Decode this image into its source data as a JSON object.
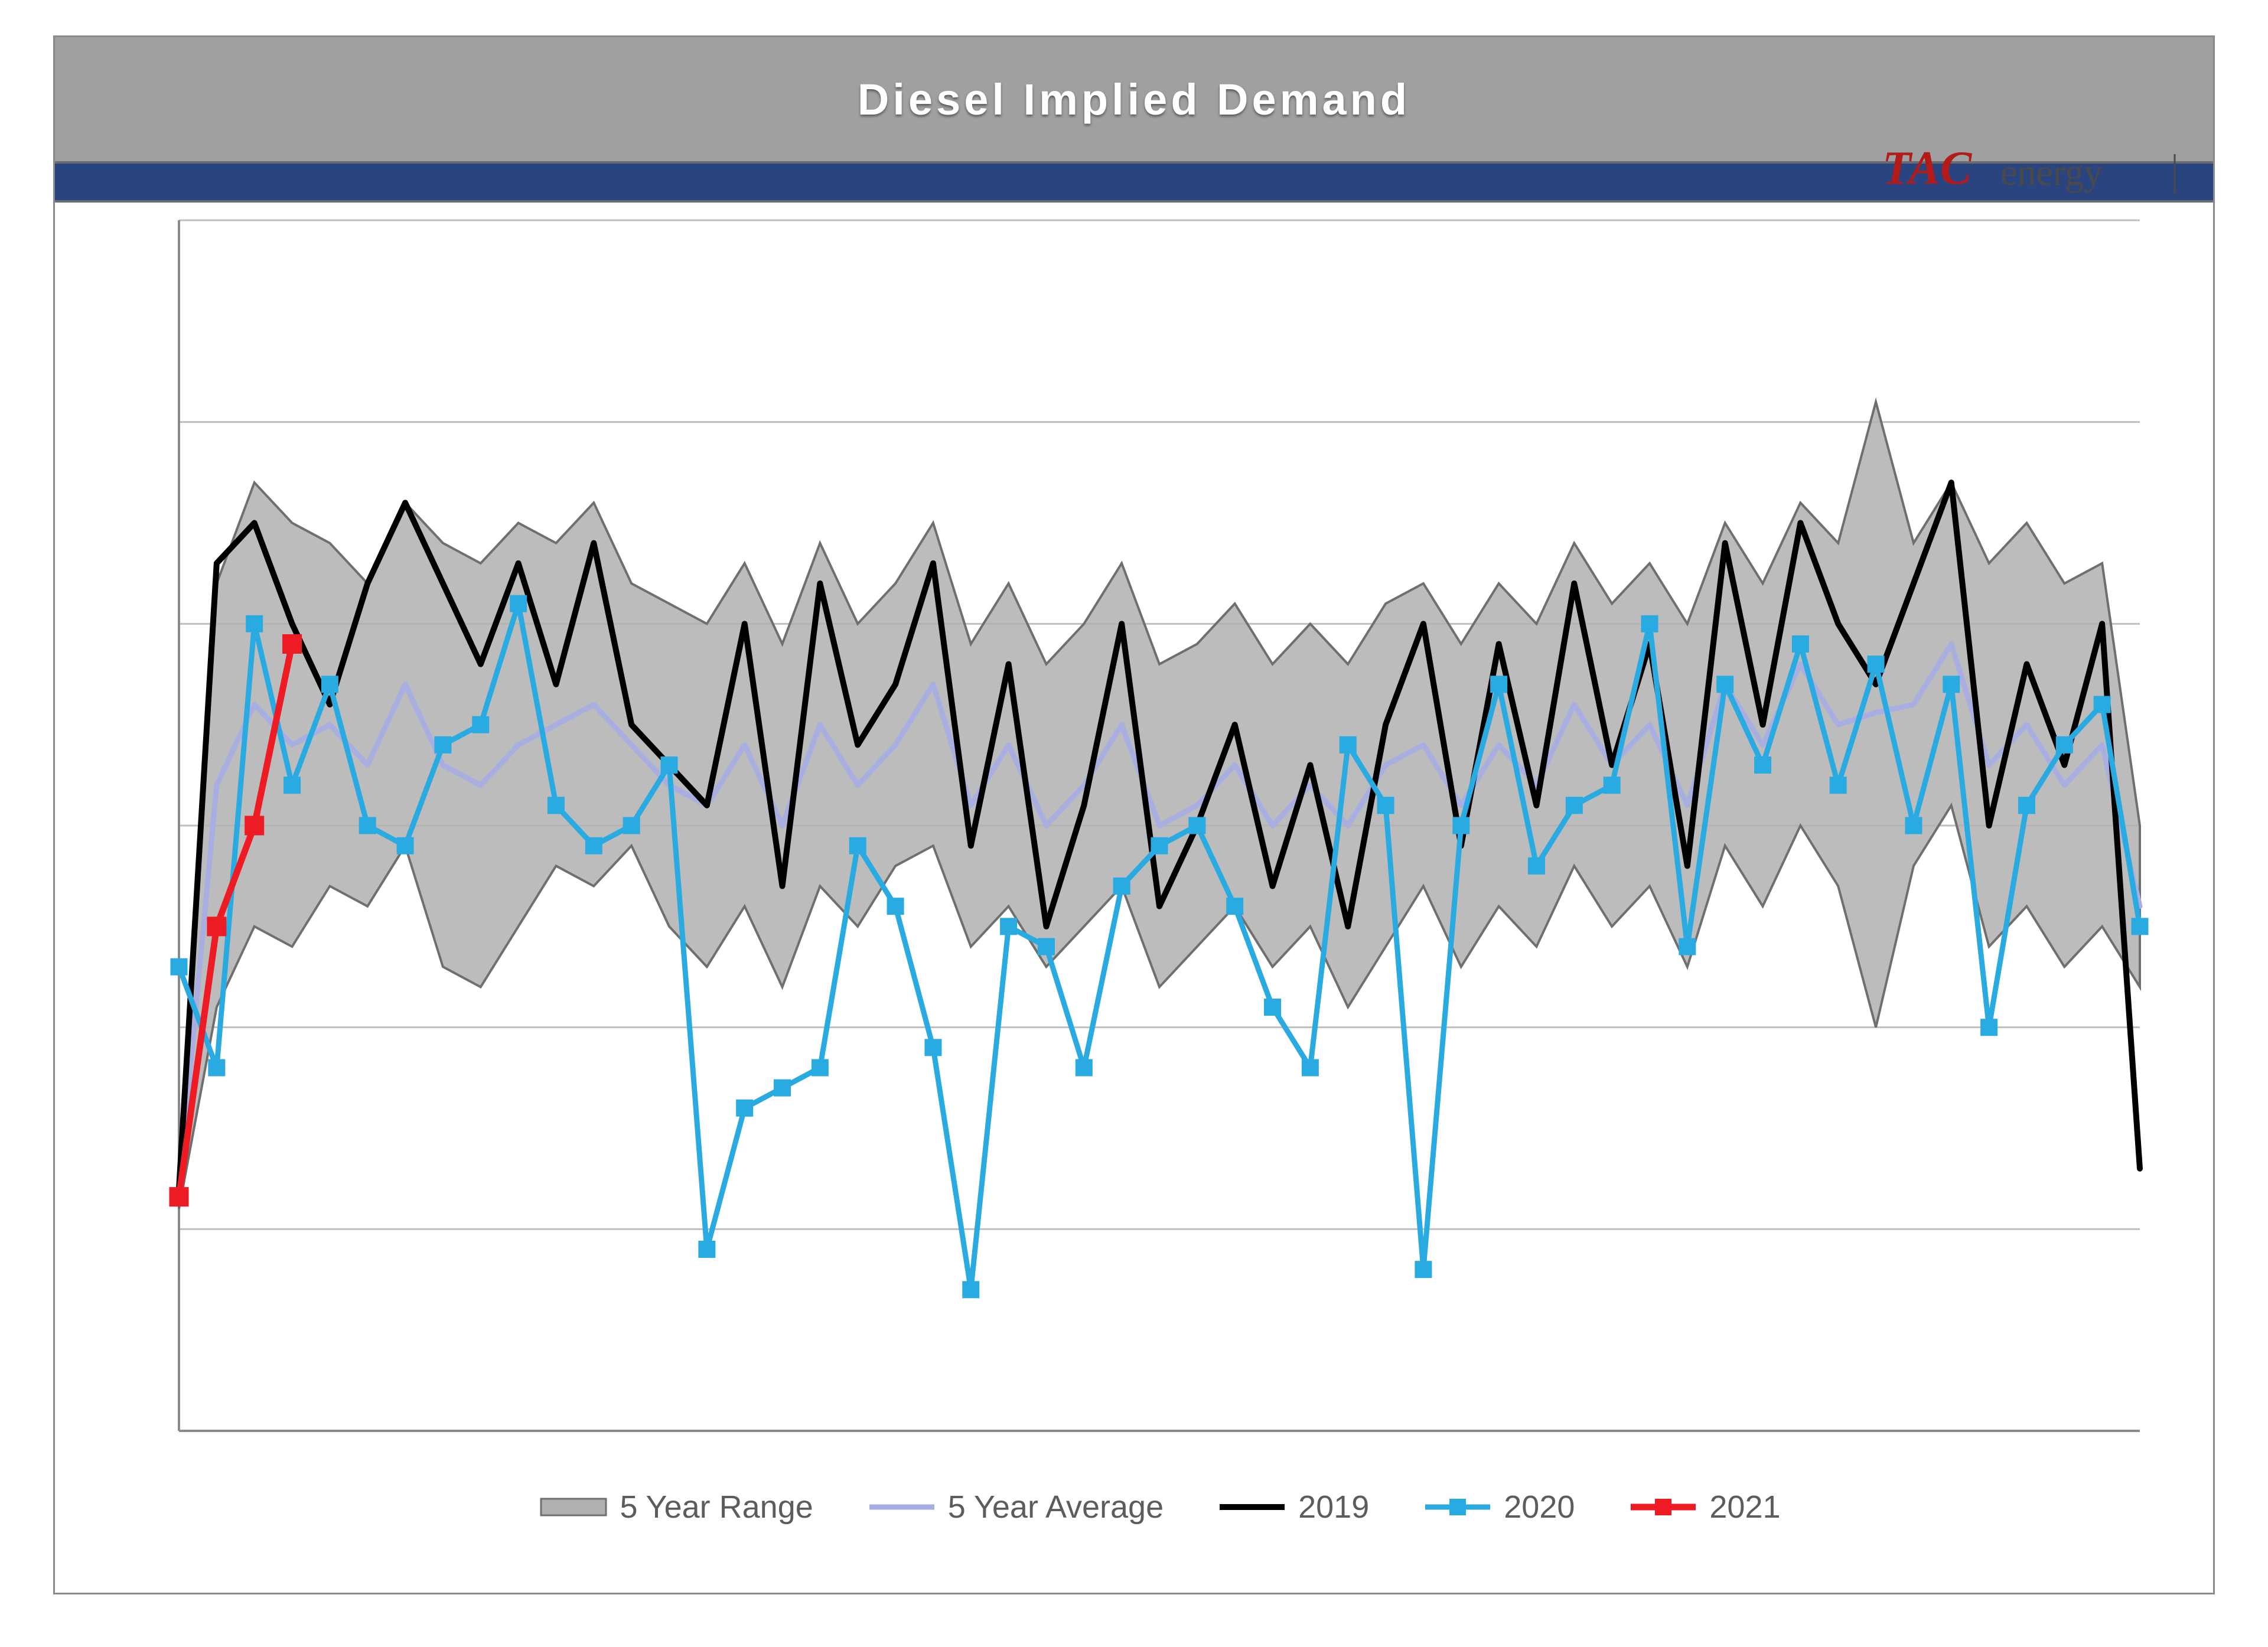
{
  "chart": {
    "type": "line-with-band",
    "title": "Diesel Implied Demand",
    "title_fontsize": 74,
    "title_color": "#ffffff",
    "title_bar_bg": "#9ea0a2",
    "accent_band_color": "#29447e",
    "outer_border_color": "#8a8a8a",
    "background_color": "#ffffff",
    "grid_color": "#bfbfbf",
    "axis_color": "#8a8a8a",
    "label_fontsize": 54,
    "label_color": "#5c5c5c",
    "x_count": 53,
    "ylim": [
      2400,
      5400
    ],
    "ytick_step": 500,
    "band": {
      "fill": "#b0b0b0",
      "stroke": "#6f6f6f",
      "upper": [
        3050,
        4500,
        4750,
        4650,
        4600,
        4500,
        4700,
        4600,
        4550,
        4650,
        4600,
        4700,
        4500,
        4450,
        4400,
        4550,
        4350,
        4600,
        4400,
        4500,
        4650,
        4350,
        4500,
        4300,
        4400,
        4550,
        4300,
        4350,
        4450,
        4300,
        4400,
        4300,
        4450,
        4500,
        4350,
        4500,
        4400,
        4600,
        4450,
        4550,
        4400,
        4650,
        4500,
        4700,
        4600,
        4950,
        4600,
        4750,
        4550,
        4650,
        4500,
        4550,
        3900
      ],
      "lower": [
        2950,
        3450,
        3650,
        3600,
        3750,
        3700,
        3850,
        3550,
        3500,
        3650,
        3800,
        3750,
        3850,
        3650,
        3550,
        3700,
        3500,
        3750,
        3650,
        3800,
        3850,
        3600,
        3700,
        3550,
        3650,
        3750,
        3500,
        3600,
        3700,
        3550,
        3650,
        3450,
        3600,
        3750,
        3550,
        3700,
        3600,
        3800,
        3650,
        3750,
        3550,
        3850,
        3700,
        3900,
        3750,
        3400,
        3800,
        3950,
        3600,
        3700,
        3550,
        3650,
        3500
      ]
    },
    "series": [
      {
        "key": "avg",
        "label": "5 Year Average",
        "color": "#a9aee0",
        "stroke_width": 9,
        "marker": "none",
        "values": [
          3000,
          4000,
          4200,
          4100,
          4150,
          4050,
          4250,
          4050,
          4000,
          4100,
          4150,
          4200,
          4100,
          4000,
          3950,
          4100,
          3900,
          4150,
          4000,
          4100,
          4250,
          3950,
          4100,
          3900,
          4000,
          4150,
          3900,
          3950,
          4050,
          3900,
          4000,
          3900,
          4050,
          4100,
          3950,
          4100,
          4000,
          4200,
          4050,
          4150,
          3950,
          4250,
          4100,
          4300,
          4150,
          4180,
          4200,
          4350,
          4050,
          4150,
          4000,
          4100,
          3700
        ]
      },
      {
        "key": "y2019",
        "label": "2019",
        "color": "#000000",
        "stroke_width": 10,
        "marker": "none",
        "values": [
          3000,
          4550,
          4650,
          4400,
          4200,
          4500,
          4700,
          4500,
          4300,
          4550,
          4250,
          4600,
          4150,
          4050,
          3950,
          4400,
          3750,
          4500,
          4100,
          4250,
          4550,
          3850,
          4300,
          3650,
          3950,
          4400,
          3700,
          3900,
          4150,
          3750,
          4050,
          3650,
          4150,
          4400,
          3850,
          4350,
          3950,
          4500,
          4050,
          4350,
          3800,
          4600,
          4150,
          4650,
          4400,
          4250,
          4500,
          4750,
          3900,
          4300,
          4050,
          4400,
          3050
        ]
      },
      {
        "key": "y2020",
        "label": "2020",
        "color": "#29abe2",
        "stroke_width": 9,
        "marker": "square",
        "marker_size": 28,
        "values": [
          3550,
          3300,
          4400,
          4000,
          4250,
          3900,
          3850,
          4100,
          4150,
          4450,
          3950,
          3850,
          3900,
          4050,
          2850,
          3200,
          3250,
          3300,
          3850,
          3700,
          3350,
          2750,
          3650,
          3600,
          3300,
          3750,
          3850,
          3900,
          3700,
          3450,
          3300,
          4100,
          3950,
          2800,
          3900,
          4250,
          3800,
          3950,
          4000,
          4400,
          3600,
          4250,
          4050,
          4350,
          4000,
          4300,
          3900,
          4250,
          3400,
          3950,
          4100,
          4200,
          3650
        ]
      },
      {
        "key": "y2021",
        "label": "2021",
        "color": "#ed1c24",
        "stroke_width": 11,
        "marker": "square",
        "marker_size": 32,
        "values": [
          2980,
          3650,
          3900,
          4350
        ]
      }
    ],
    "legend": {
      "items": [
        {
          "key": "band",
          "label": "5 Year Range"
        },
        {
          "key": "avg",
          "label": "5 Year Average"
        },
        {
          "key": "y2019",
          "label": "2019"
        },
        {
          "key": "y2020",
          "label": "2020"
        },
        {
          "key": "y2021",
          "label": "2021"
        }
      ]
    },
    "logo": {
      "tac_text": "TAC",
      "tac_color": "#b31b1b",
      "energy_text": "energy",
      "energy_color": "#4a4a4a",
      "fontsize_tac": 80,
      "fontsize_energy": 64
    }
  }
}
